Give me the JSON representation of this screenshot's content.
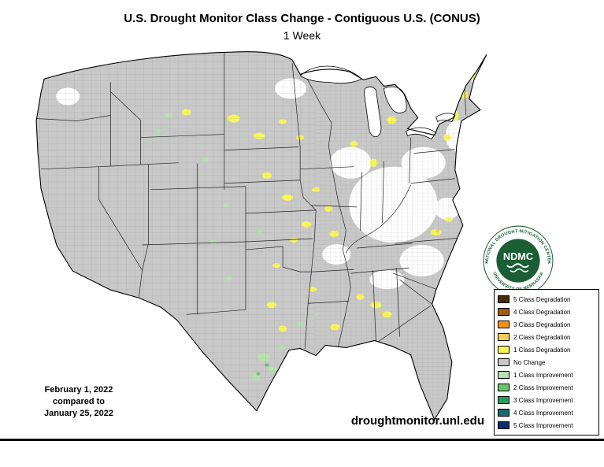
{
  "header": {
    "title": "U.S. Drought Monitor Class Change - Contiguous U.S. (CONUS)",
    "subtitle": "1 Week"
  },
  "legend": {
    "items": [
      {
        "label": "5 Class Degradation",
        "color": "#4a2a00"
      },
      {
        "label": "4 Class Degradation",
        "color": "#9a5d10"
      },
      {
        "label": "3 Class Degradation",
        "color": "#f59410"
      },
      {
        "label": "2 Class Degradation",
        "color": "#f0cf55"
      },
      {
        "label": "1 Class Degradation",
        "color": "#f7f75a"
      },
      {
        "label": "No Change",
        "color": "#c8c8c8"
      },
      {
        "label": "1 Class Improvement",
        "color": "#b5e2af"
      },
      {
        "label": "2 Class Improvement",
        "color": "#6fc26f"
      },
      {
        "label": "3 Class Improvement",
        "color": "#2e9962"
      },
      {
        "label": "4 Class Improvement",
        "color": "#1a6a6a"
      },
      {
        "label": "5 Class Improvement",
        "color": "#0d2d6b"
      }
    ]
  },
  "logo": {
    "acronym": "NDMC",
    "ring_top": "NATIONAL DROUGHT MITIGATION CENTER",
    "ring_bottom": "UNIVERSITY OF NEBRASKA",
    "separator": "★"
  },
  "footer": {
    "date_line1": "February 1, 2022",
    "date_line2": "compared to",
    "date_line3": "January 25, 2022",
    "website": "droughtmonitor.unl.edu"
  }
}
